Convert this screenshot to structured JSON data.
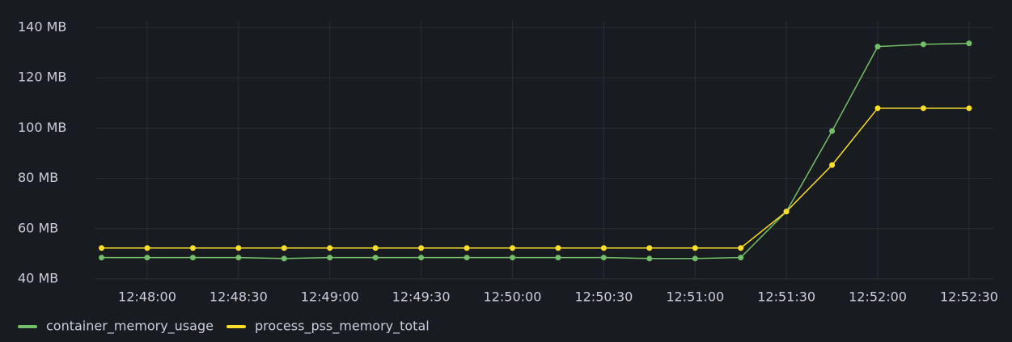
{
  "chart_data": {
    "type": "line",
    "x": [
      "12:47:45",
      "12:48:00",
      "12:48:15",
      "12:48:30",
      "12:48:45",
      "12:49:00",
      "12:49:15",
      "12:49:30",
      "12:49:45",
      "12:50:00",
      "12:50:15",
      "12:50:30",
      "12:50:45",
      "12:51:00",
      "12:51:15",
      "12:51:30",
      "12:51:45",
      "12:52:00",
      "12:52:15",
      "12:52:30"
    ],
    "series": [
      {
        "name": "container_memory_usage",
        "color": "#73bf69",
        "values": [
          48.5,
          48.5,
          48.5,
          48.5,
          48.1,
          48.5,
          48.5,
          48.5,
          48.5,
          48.5,
          48.5,
          48.5,
          48.1,
          48.1,
          48.5,
          66.8,
          98.8,
          132.4,
          133.3,
          133.7
        ]
      },
      {
        "name": "process_pss_memory_total",
        "color": "#fade2a",
        "values": [
          52.3,
          52.3,
          52.3,
          52.3,
          52.3,
          52.3,
          52.3,
          52.3,
          52.3,
          52.3,
          52.3,
          52.3,
          52.3,
          52.3,
          52.3,
          66.8,
          85.3,
          107.9,
          107.9,
          107.9
        ]
      }
    ],
    "xlim": [
      "12:47:43",
      "12:52:38"
    ],
    "xticks": [
      "12:48:00",
      "12:48:30",
      "12:49:00",
      "12:49:30",
      "12:50:00",
      "12:50:30",
      "12:51:00",
      "12:51:30",
      "12:52:00",
      "12:52:30"
    ],
    "ylim": [
      40,
      140
    ],
    "yticks": [
      {
        "value": 40,
        "label": "40 MB"
      },
      {
        "value": 60,
        "label": "60 MB"
      },
      {
        "value": 80,
        "label": "80 MB"
      },
      {
        "value": 100,
        "label": "100 MB"
      },
      {
        "value": 120,
        "label": "120 MB"
      },
      {
        "value": 140,
        "label": "140 MB"
      }
    ],
    "grid": true,
    "legend": "bottom"
  }
}
